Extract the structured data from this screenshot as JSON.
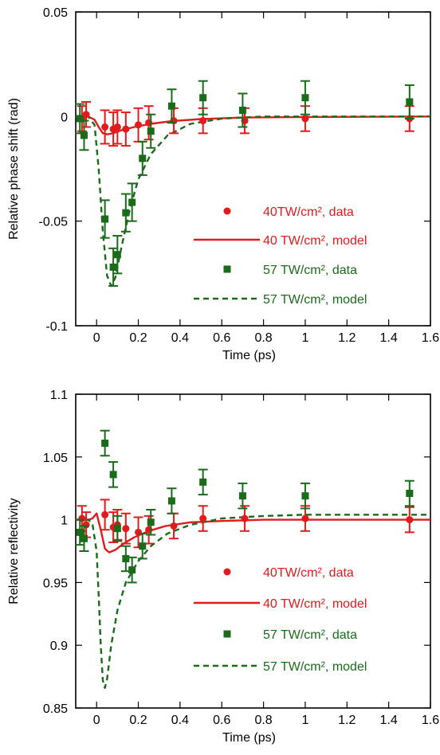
{
  "chart_data": [
    {
      "type": "scatter",
      "xlabel": "Time (ps)",
      "ylabel": "Relative phase shift (rad)",
      "xlim": [
        -0.1,
        1.6
      ],
      "ylim": [
        -0.1,
        0.05
      ],
      "xticks": [
        "0",
        "0.2",
        "0.4",
        "0.6",
        "0.8",
        "1",
        "1.2",
        "1.4",
        "1.6"
      ],
      "xtick_values": [
        0,
        0.2,
        0.4,
        0.6,
        0.8,
        1,
        1.2,
        1.4,
        1.6
      ],
      "yticks": [
        "-0.1",
        "-0.05",
        "0",
        "0.05"
      ],
      "ytick_values": [
        -0.1,
        -0.05,
        0,
        0.05
      ],
      "legend_position": "bottom-right",
      "series": [
        {
          "name": "40TW/cm², data",
          "kind": "points-circle",
          "color": "#e31a1c",
          "x": [
            -0.07,
            -0.05,
            0.04,
            0.08,
            0.1,
            0.14,
            0.2,
            0.25,
            0.37,
            0.51,
            0.71,
            1.0,
            1.5
          ],
          "y": [
            -0.001,
            0.001,
            -0.005,
            -0.006,
            -0.005,
            -0.006,
            -0.004,
            -0.003,
            -0.002,
            -0.002,
            -0.002,
            -0.001,
            -0.001
          ],
          "err": [
            0.006,
            0.006,
            0.008,
            0.008,
            0.008,
            0.008,
            0.008,
            0.008,
            0.006,
            0.006,
            0.006,
            0.006,
            0.006
          ]
        },
        {
          "name": "40 TW/cm², model",
          "kind": "line-solid",
          "color": "#e31a1c",
          "x": [
            -0.1,
            -0.04,
            -0.01,
            0.01,
            0.03,
            0.05,
            0.08,
            0.12,
            0.18,
            0.26,
            0.36,
            0.5,
            0.7,
            1.0,
            1.6
          ],
          "y": [
            0,
            0,
            -0.0015,
            -0.005,
            -0.008,
            -0.0085,
            -0.008,
            -0.0065,
            -0.005,
            -0.0035,
            -0.0022,
            -0.0012,
            -0.0005,
            -0.0002,
            0
          ]
        },
        {
          "name": "57 TW/cm², data",
          "kind": "points-square",
          "color": "#1a6b1a",
          "x": [
            -0.08,
            -0.06,
            0.04,
            0.08,
            0.1,
            0.14,
            0.17,
            0.22,
            0.26,
            0.36,
            0.51,
            0.7,
            1.0,
            1.5
          ],
          "y": [
            -0.001,
            -0.009,
            -0.049,
            -0.072,
            -0.066,
            -0.046,
            -0.041,
            -0.02,
            -0.007,
            0.005,
            0.009,
            0.003,
            0.009,
            0.007
          ],
          "err": [
            0.007,
            0.007,
            0.009,
            0.009,
            0.009,
            0.009,
            0.009,
            0.008,
            0.008,
            0.008,
            0.008,
            0.008,
            0.008,
            0.008
          ]
        },
        {
          "name": "57 TW/cm², model",
          "kind": "line-dashed",
          "color": "#1a6b1a",
          "x": [
            -0.1,
            -0.04,
            -0.01,
            0.01,
            0.03,
            0.05,
            0.07,
            0.09,
            0.12,
            0.16,
            0.2,
            0.26,
            0.34,
            0.45,
            0.6,
            0.8,
            1.0,
            1.6
          ],
          "y": [
            0,
            0,
            -0.004,
            -0.025,
            -0.055,
            -0.076,
            -0.081,
            -0.077,
            -0.062,
            -0.044,
            -0.03,
            -0.018,
            -0.009,
            -0.0035,
            -0.001,
            0,
            0,
            0
          ]
        }
      ]
    },
    {
      "type": "scatter",
      "xlabel": "Time (ps)",
      "ylabel": "Relative reflectivity",
      "xlim": [
        -0.1,
        1.6
      ],
      "ylim": [
        0.85,
        1.1
      ],
      "xticks": [
        "0",
        "0.2",
        "0.4",
        "0.6",
        "0.8",
        "1",
        "1.2",
        "1.4",
        "1.6"
      ],
      "xtick_values": [
        0,
        0.2,
        0.4,
        0.6,
        0.8,
        1,
        1.2,
        1.4,
        1.6
      ],
      "yticks": [
        "0.85",
        "0.9",
        "0.95",
        "1",
        "1.05",
        "1.1"
      ],
      "ytick_values": [
        0.85,
        0.9,
        0.95,
        1,
        1.05,
        1.1
      ],
      "legend_position": "bottom-right",
      "series": [
        {
          "name": "40TW/cm², data",
          "kind": "points-circle",
          "color": "#e31a1c",
          "x": [
            -0.07,
            -0.05,
            0.04,
            0.08,
            0.1,
            0.14,
            0.2,
            0.25,
            0.37,
            0.51,
            0.71,
            1.0,
            1.5
          ],
          "y": [
            1.001,
            0.996,
            1.004,
            0.994,
            0.996,
            0.993,
            0.99,
            0.992,
            0.995,
            1.001,
            1.001,
            1.001,
            1.0
          ],
          "err": [
            0.01,
            0.01,
            0.012,
            0.012,
            0.012,
            0.012,
            0.012,
            0.011,
            0.01,
            0.01,
            0.01,
            0.01,
            0.01
          ]
        },
        {
          "name": "40 TW/cm², model",
          "kind": "line-solid",
          "color": "#e31a1c",
          "x": [
            -0.1,
            -0.04,
            -0.02,
            0.0,
            0.02,
            0.04,
            0.06,
            0.09,
            0.13,
            0.18,
            0.25,
            0.33,
            0.45,
            0.6,
            0.8,
            1.0,
            1.6
          ],
          "y": [
            1.0,
            1.0,
            1.001,
            1.005,
            0.992,
            0.977,
            0.974,
            0.976,
            0.981,
            0.986,
            0.991,
            0.995,
            0.998,
            0.999,
            1.0,
            1.0,
            1.0
          ]
        },
        {
          "name": "57 TW/cm², data",
          "kind": "points-square",
          "color": "#1a6b1a",
          "x": [
            -0.08,
            -0.06,
            0.04,
            0.08,
            0.1,
            0.14,
            0.17,
            0.22,
            0.26,
            0.36,
            0.51,
            0.7,
            1.0,
            1.5
          ],
          "y": [
            0.99,
            0.985,
            1.061,
            1.036,
            0.993,
            0.969,
            0.96,
            0.979,
            0.998,
            1.015,
            1.03,
            1.019,
            1.019,
            1.021
          ],
          "err": [
            0.01,
            0.01,
            0.01,
            0.01,
            0.01,
            0.01,
            0.01,
            0.01,
            0.01,
            0.01,
            0.01,
            0.01,
            0.01,
            0.01
          ]
        },
        {
          "name": "57 TW/cm², model",
          "kind": "line-dashed",
          "color": "#1a6b1a",
          "x": [
            -0.1,
            -0.04,
            -0.02,
            0.0,
            0.01,
            0.02,
            0.03,
            0.04,
            0.05,
            0.07,
            0.1,
            0.14,
            0.2,
            0.26,
            0.34,
            0.45,
            0.6,
            0.8,
            1.0,
            1.6
          ],
          "y": [
            1.0,
            1.0,
            0.997,
            0.975,
            0.94,
            0.9,
            0.872,
            0.866,
            0.873,
            0.9,
            0.928,
            0.95,
            0.967,
            0.979,
            0.989,
            0.996,
            1.001,
            1.003,
            1.004,
            1.004
          ]
        }
      ]
    }
  ]
}
